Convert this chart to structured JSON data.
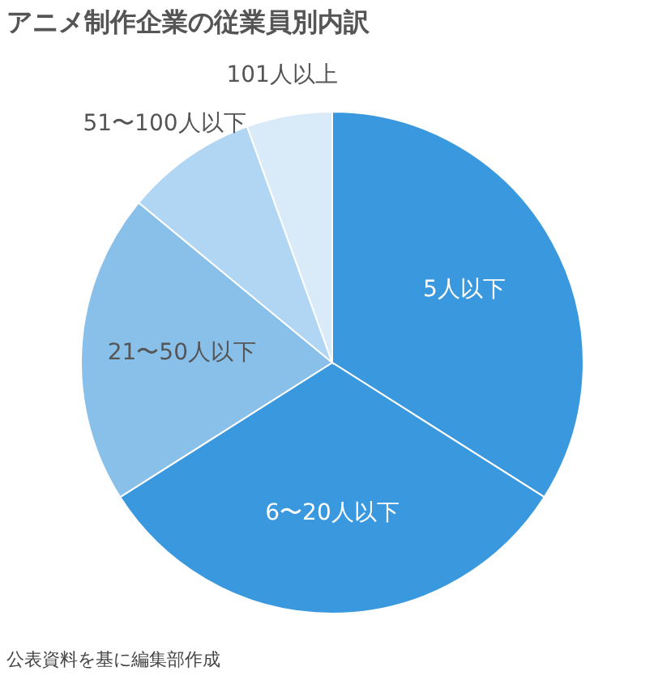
{
  "chart_data": {
    "type": "pie",
    "title": "アニメ制作企業の従業員別内訳",
    "categories": [
      "5人以下",
      "6〜20人以下",
      "21〜50人以下",
      "51〜100人以下",
      "101人以上"
    ],
    "values": [
      34,
      32,
      20,
      8.5,
      5.5
    ],
    "colors": [
      "#3a99de",
      "#3a99de",
      "#88c0ea",
      "#b0d6f3",
      "#d9eaf9"
    ],
    "annotations": [
      "公表資料を基に編集部作成"
    ]
  }
}
